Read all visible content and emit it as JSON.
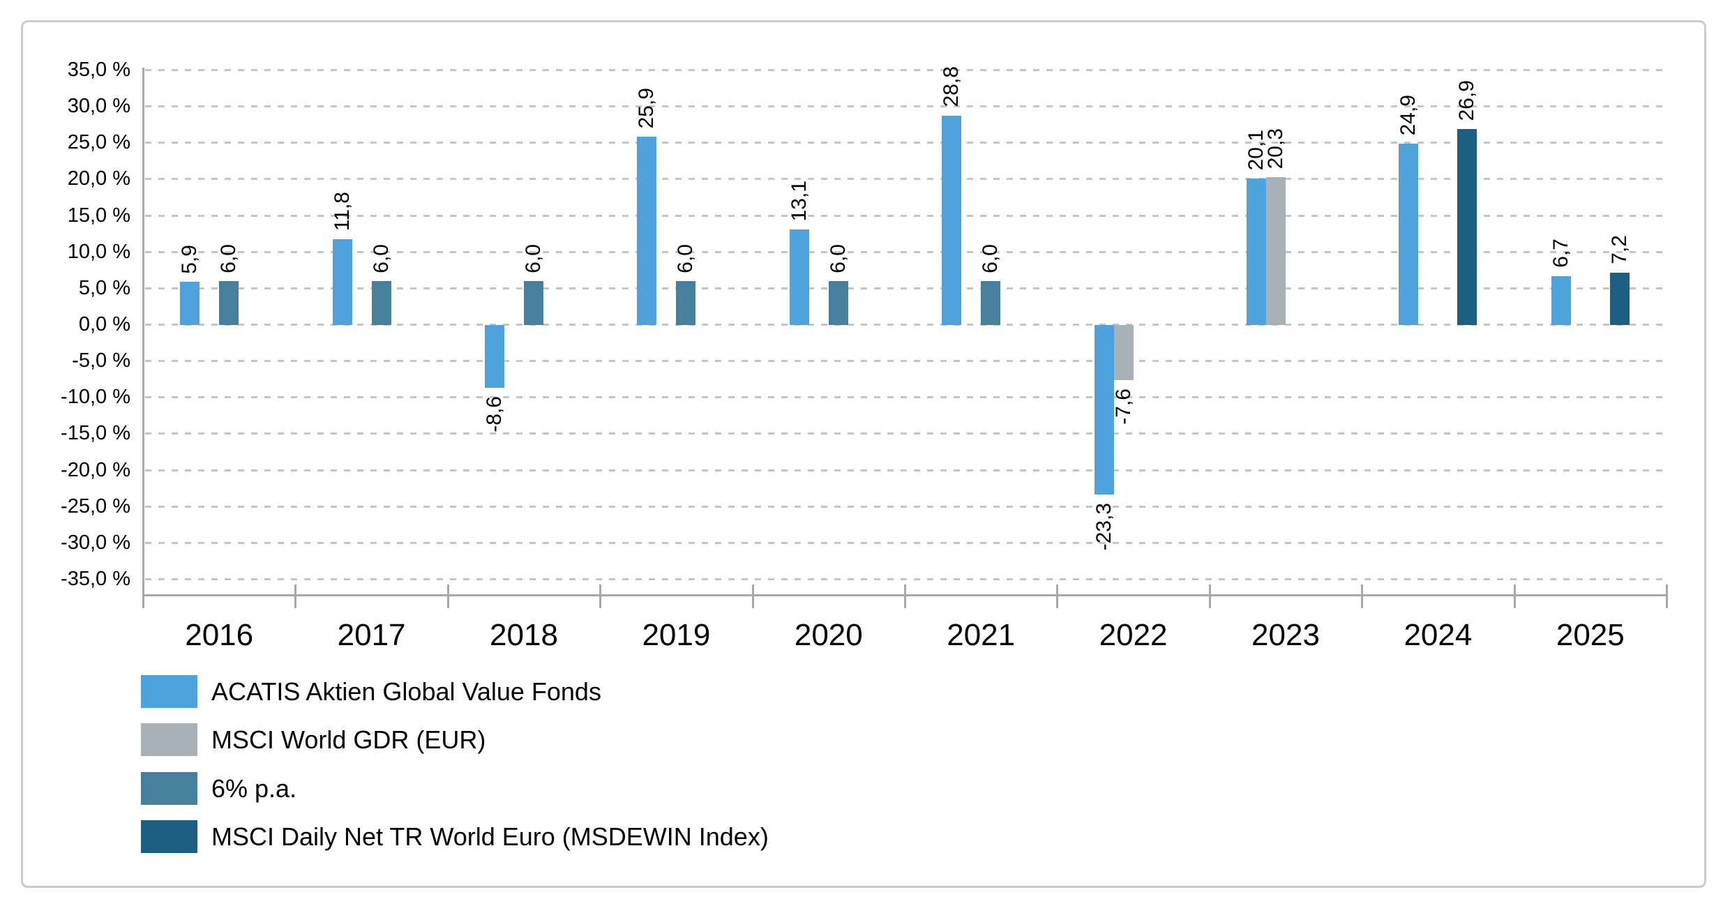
{
  "colors": {
    "acatis_blue": "#4ea3db",
    "msci_gdr_gray": "#a8b0b8",
    "six_pa_steel": "#47809c",
    "msdewin_dark": "#1d5f82",
    "gridline": "#c6c6c6",
    "axis": "#a8a8a8",
    "frame_border": "#cbcbcb",
    "text": "#000000"
  },
  "chart_data": {
    "type": "bar",
    "title": "",
    "categories": [
      "2016",
      "2017",
      "2018",
      "2019",
      "2020",
      "2021",
      "2022",
      "2023",
      "2024",
      "2025"
    ],
    "series": [
      {
        "name": "ACATIS Aktien Global Value Fonds",
        "color_key": "acatis_blue",
        "slot": 0,
        "values": [
          5.9,
          11.8,
          -8.6,
          25.9,
          13.1,
          28.8,
          -23.3,
          20.1,
          24.9,
          6.7
        ],
        "labels": [
          "5,9",
          "11,8",
          "-8,6",
          "25,9",
          "13,1",
          "28,8",
          "-23,3",
          "20,1",
          "24,9",
          "6,7"
        ]
      },
      {
        "name": "MSCI World GDR (EUR)",
        "color_key": "msci_gdr_gray",
        "slot": 1,
        "values": [
          null,
          null,
          null,
          null,
          null,
          null,
          -7.6,
          20.3,
          null,
          null
        ],
        "labels": [
          null,
          null,
          null,
          null,
          null,
          null,
          "-7,6",
          "20,3",
          null,
          null
        ]
      },
      {
        "name": "6% p.a.",
        "color_key": "six_pa_steel",
        "slot": 2,
        "values": [
          6.0,
          6.0,
          6.0,
          6.0,
          6.0,
          6.0,
          null,
          null,
          null,
          null
        ],
        "labels": [
          "6,0",
          "6,0",
          "6,0",
          "6,0",
          "6,0",
          "6,0",
          null,
          null,
          null,
          null
        ]
      },
      {
        "name": "MSCI Daily Net TR World Euro (MSDEWIN Index)",
        "color_key": "msdewin_dark",
        "slot": 3,
        "values": [
          null,
          null,
          null,
          null,
          null,
          null,
          null,
          null,
          26.9,
          7.2
        ],
        "labels": [
          null,
          null,
          null,
          null,
          null,
          null,
          null,
          null,
          "26,9",
          "7,2"
        ]
      }
    ],
    "y_ticks": [
      "35,0 %",
      "30,0 %",
      "25,0 %",
      "20,0 %",
      "15,0 %",
      "10,0 %",
      "5,0 %",
      "0,0 %",
      "-5,0 %",
      "-10,0 %",
      "-15,0 %",
      "-20,0 %",
      "-25,0 %",
      "-30,0 %",
      "-35,0 %"
    ],
    "ylim": [
      -35,
      35
    ],
    "y_step": 5,
    "grid": true,
    "legend_position": "bottom-left",
    "xlabel": "",
    "ylabel": ""
  },
  "legend": {
    "items": [
      {
        "label": "ACATIS Aktien Global Value Fonds",
        "color_key": "acatis_blue"
      },
      {
        "label": "MSCI World GDR (EUR)",
        "color_key": "msci_gdr_gray"
      },
      {
        "label": "6% p.a.",
        "color_key": "six_pa_steel"
      },
      {
        "label": "MSCI Daily Net TR World Euro (MSDEWIN Index)",
        "color_key": "msdewin_dark"
      }
    ]
  }
}
